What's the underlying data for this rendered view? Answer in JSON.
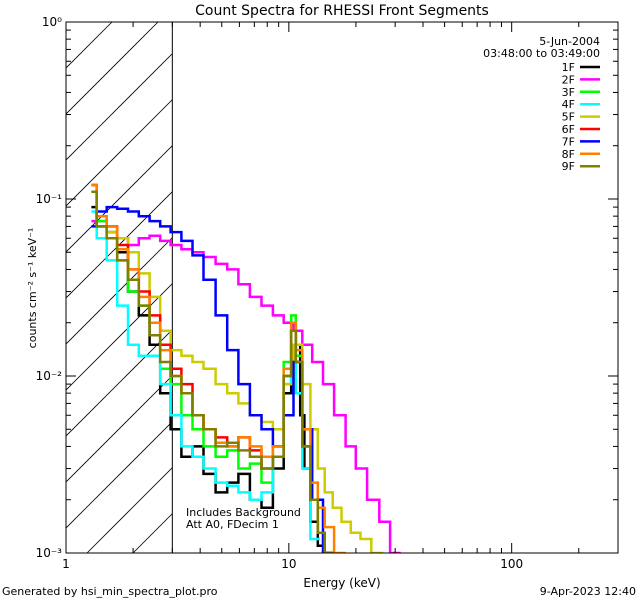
{
  "chart_data": {
    "type": "line",
    "title": "Count Spectra for RHESSI Front Segments",
    "xlabel": "Energy (keV)",
    "ylabel": "counts cm⁻² s⁻¹ keV⁻¹",
    "xscale": "log",
    "yscale": "log",
    "xlim": [
      1,
      300
    ],
    "ylim": [
      0.001,
      1
    ],
    "xticks": [
      {
        "value": 1,
        "label": "1"
      },
      {
        "value": 10,
        "label": "10"
      },
      {
        "value": 100,
        "label": "100"
      }
    ],
    "yticks": [
      {
        "value": 1,
        "label": "10⁰"
      },
      {
        "value": 0.1,
        "label": "10⁻¹"
      },
      {
        "value": 0.01,
        "label": "10⁻²"
      },
      {
        "value": 0.001,
        "label": "10⁻³"
      }
    ],
    "hatched_region": {
      "x_from": 1,
      "x_to": 3,
      "note": "excluded low-energy band"
    },
    "date_label": "5-Jun-2004",
    "time_range_label": "03:48:00 to 03:49:00",
    "annotation_lines": [
      "Includes Background",
      "Att A0, FDecim 1"
    ],
    "legend_position": "top-right",
    "series": [
      {
        "name": "1F",
        "color": "#000000",
        "x": [
          1.3,
          1.45,
          1.6,
          1.8,
          2.0,
          2.25,
          2.5,
          2.8,
          3.1,
          3.5,
          3.9,
          4.4,
          5.0,
          5.6,
          6.3,
          7.1,
          8.0,
          9.0,
          10.0,
          10.5,
          11.0,
          11.5,
          12.0,
          13.0,
          14.0,
          15.0
        ],
        "y": [
          0.09,
          0.07,
          0.065,
          0.05,
          0.03,
          0.022,
          0.015,
          0.008,
          0.005,
          0.0035,
          0.004,
          0.0028,
          0.0022,
          0.0025,
          0.0028,
          0.002,
          0.0018,
          0.003,
          0.008,
          0.02,
          0.015,
          0.006,
          0.003,
          0.0015,
          0.0011,
          0.001
        ]
      },
      {
        "name": "2F",
        "color": "#ff00ff",
        "x": [
          1.3,
          1.45,
          1.6,
          1.8,
          2.0,
          2.25,
          2.5,
          2.8,
          3.1,
          3.5,
          3.9,
          4.4,
          5.0,
          5.6,
          6.3,
          7.1,
          8.0,
          9.0,
          10.0,
          11.0,
          12.0,
          13.5,
          15.0,
          17.0,
          19.0,
          21.0,
          24.0,
          27.0,
          30.0
        ],
        "y": [
          0.075,
          0.075,
          0.07,
          0.06,
          0.055,
          0.06,
          0.062,
          0.058,
          0.055,
          0.052,
          0.05,
          0.047,
          0.043,
          0.04,
          0.033,
          0.028,
          0.025,
          0.022,
          0.02,
          0.018,
          0.015,
          0.012,
          0.009,
          0.006,
          0.004,
          0.003,
          0.002,
          0.0015,
          0.001
        ]
      },
      {
        "name": "3F",
        "color": "#00ff00",
        "x": [
          1.3,
          1.45,
          1.6,
          1.8,
          2.0,
          2.25,
          2.5,
          2.8,
          3.1,
          3.5,
          3.9,
          4.4,
          5.0,
          5.6,
          6.3,
          7.1,
          8.0,
          9.0,
          10.0,
          10.5,
          11.0,
          12.0,
          13.0,
          14.0,
          15.0
        ],
        "y": [
          0.11,
          0.075,
          0.06,
          0.045,
          0.03,
          0.025,
          0.02,
          0.011,
          0.009,
          0.006,
          0.005,
          0.004,
          0.0035,
          0.0038,
          0.003,
          0.0032,
          0.0025,
          0.004,
          0.012,
          0.022,
          0.013,
          0.004,
          0.002,
          0.0013,
          0.001
        ]
      },
      {
        "name": "4F",
        "color": "#00ffff",
        "x": [
          1.3,
          1.45,
          1.6,
          1.8,
          2.0,
          2.25,
          2.5,
          2.8,
          3.1,
          3.5,
          3.9,
          4.4,
          5.0,
          5.6,
          6.3,
          7.1,
          8.0,
          9.0,
          10.0,
          10.5,
          11.0,
          12.0,
          13.0
        ],
        "y": [
          0.085,
          0.06,
          0.045,
          0.025,
          0.015,
          0.013,
          0.013,
          0.009,
          0.006,
          0.004,
          0.0035,
          0.003,
          0.0025,
          0.0024,
          0.0022,
          0.002,
          0.0022,
          0.0035,
          0.009,
          0.015,
          0.008,
          0.003,
          0.0012
        ]
      },
      {
        "name": "5F",
        "color": "#cccc00",
        "x": [
          1.3,
          1.45,
          1.6,
          1.8,
          2.0,
          2.25,
          2.5,
          2.8,
          3.1,
          3.5,
          3.9,
          4.4,
          5.0,
          5.6,
          6.3,
          7.1,
          8.0,
          9.0,
          10.0,
          11.0,
          12.0,
          13.0,
          14.0,
          15.0,
          16.5,
          18.0,
          20.0,
          22.0,
          25.0
        ],
        "y": [
          0.12,
          0.07,
          0.065,
          0.06,
          0.05,
          0.038,
          0.028,
          0.018,
          0.014,
          0.013,
          0.012,
          0.011,
          0.009,
          0.008,
          0.007,
          0.006,
          0.0055,
          0.005,
          0.009,
          0.015,
          0.009,
          0.005,
          0.003,
          0.0022,
          0.0018,
          0.0015,
          0.0013,
          0.0012,
          0.001
        ]
      },
      {
        "name": "6F",
        "color": "#ff0000",
        "x": [
          1.3,
          1.45,
          1.6,
          1.8,
          2.0,
          2.25,
          2.5,
          2.8,
          3.1,
          3.5,
          3.9,
          4.4,
          5.0,
          5.6,
          6.3,
          7.1,
          8.0,
          9.0,
          10.0,
          10.5,
          11.0,
          12.0,
          13.0,
          14.0,
          15.0
        ],
        "y": [
          0.12,
          0.08,
          0.07,
          0.055,
          0.04,
          0.03,
          0.022,
          0.015,
          0.011,
          0.009,
          0.006,
          0.005,
          0.0045,
          0.004,
          0.0045,
          0.0038,
          0.003,
          0.0035,
          0.01,
          0.018,
          0.012,
          0.004,
          0.002,
          0.0013,
          0.001
        ]
      },
      {
        "name": "7F",
        "color": "#0000ff",
        "x": [
          1.3,
          1.45,
          1.6,
          1.8,
          2.0,
          2.25,
          2.5,
          2.8,
          3.1,
          3.5,
          3.9,
          4.4,
          5.0,
          5.6,
          6.3,
          7.1,
          8.0,
          9.0,
          10.0,
          11.0,
          12.0,
          13.5,
          15.0
        ],
        "y": [
          0.07,
          0.085,
          0.09,
          0.088,
          0.085,
          0.08,
          0.075,
          0.07,
          0.065,
          0.058,
          0.048,
          0.035,
          0.022,
          0.014,
          0.009,
          0.006,
          0.005,
          0.004,
          0.006,
          0.012,
          0.005,
          0.002,
          0.001
        ]
      },
      {
        "name": "8F",
        "color": "#ff8000",
        "x": [
          1.3,
          1.45,
          1.6,
          1.8,
          2.0,
          2.25,
          2.5,
          2.8,
          3.1,
          3.5,
          3.9,
          4.4,
          5.0,
          5.6,
          6.3,
          7.1,
          8.0,
          9.0,
          10.0,
          10.5,
          11.0,
          12.0,
          13.0,
          14.0,
          15.0,
          17.0
        ],
        "y": [
          0.12,
          0.08,
          0.07,
          0.052,
          0.04,
          0.028,
          0.02,
          0.014,
          0.01,
          0.008,
          0.006,
          0.005,
          0.0042,
          0.004,
          0.0045,
          0.004,
          0.0035,
          0.004,
          0.011,
          0.02,
          0.014,
          0.005,
          0.0025,
          0.0018,
          0.0014,
          0.001
        ]
      },
      {
        "name": "9F",
        "color": "#808000",
        "x": [
          1.3,
          1.45,
          1.6,
          1.8,
          2.0,
          2.25,
          2.5,
          2.8,
          3.1,
          3.5,
          3.9,
          4.4,
          5.0,
          5.6,
          6.3,
          7.1,
          8.0,
          9.0,
          10.0,
          10.5,
          11.0,
          12.0,
          13.0,
          14.0,
          15.0
        ],
        "y": [
          0.11,
          0.07,
          0.06,
          0.045,
          0.035,
          0.025,
          0.017,
          0.012,
          0.01,
          0.008,
          0.006,
          0.005,
          0.004,
          0.0042,
          0.0038,
          0.0035,
          0.003,
          0.0035,
          0.01,
          0.018,
          0.012,
          0.004,
          0.002,
          0.0013,
          0.001
        ]
      }
    ]
  },
  "footer": {
    "left": "Generated by hsi_min_spectra_plot.pro",
    "right": "9-Apr-2023 12:40"
  }
}
